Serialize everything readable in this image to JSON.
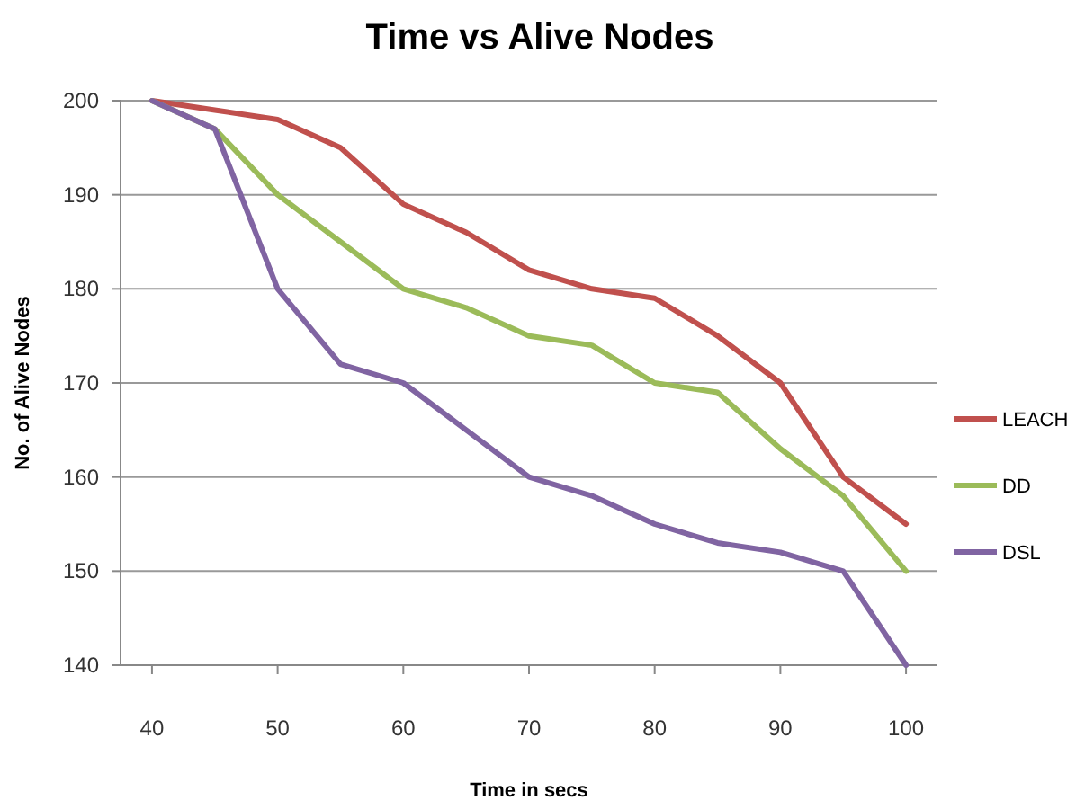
{
  "chart_data": {
    "type": "line",
    "title": "Time vs Alive Nodes",
    "xlabel": "Time in secs",
    "ylabel": "No. of Alive Nodes",
    "x": [
      40,
      45,
      50,
      55,
      60,
      65,
      70,
      75,
      80,
      85,
      90,
      95,
      100
    ],
    "series": [
      {
        "name": "LEACH",
        "color": "#c0504d",
        "values": [
          200,
          199,
          198,
          195,
          189,
          186,
          182,
          180,
          179,
          175,
          170,
          160,
          155
        ]
      },
      {
        "name": "DD",
        "color": "#9bbb59",
        "values": [
          200,
          197,
          190,
          185,
          180,
          178,
          175,
          174,
          170,
          169,
          163,
          158,
          150
        ]
      },
      {
        "name": "DSL",
        "color": "#8064a2",
        "values": [
          200,
          197,
          180,
          172,
          170,
          165,
          160,
          158,
          155,
          153,
          152,
          150,
          140
        ]
      }
    ],
    "xlim": [
      37.5,
      102.5
    ],
    "xticks": [
      40,
      50,
      60,
      70,
      80,
      90,
      100
    ],
    "ylim": [
      140,
      200
    ],
    "yticks": [
      140,
      150,
      160,
      170,
      180,
      190,
      200
    ],
    "grid": "y",
    "legend": "right",
    "marker": "none",
    "line_style": "solid"
  }
}
